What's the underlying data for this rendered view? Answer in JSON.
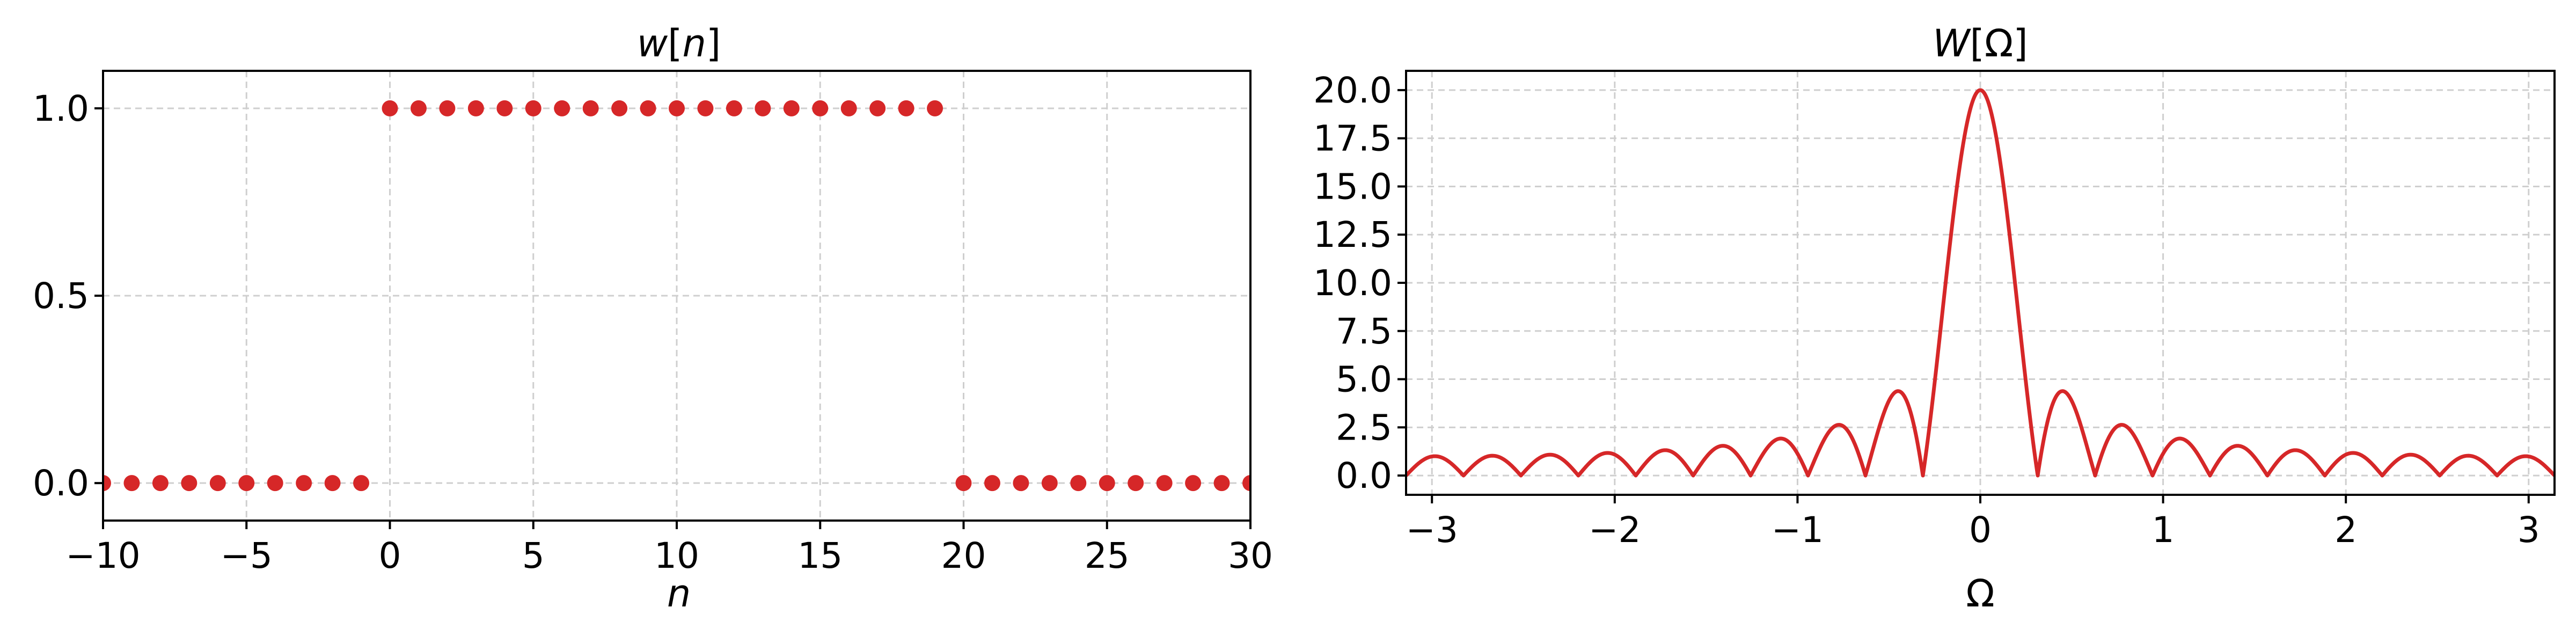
{
  "colors": {
    "series": "#d62728",
    "grid": "#cfcfcf",
    "axis": "#000000"
  },
  "chart_data": [
    {
      "type": "scatter",
      "title": "w[n]",
      "title_parts": {
        "fn": "w",
        "open": "[",
        "var": "n",
        "close": "]"
      },
      "xlabel": "n",
      "ylabel": "",
      "xlim": [
        -10,
        30
      ],
      "ylim": [
        -0.1,
        1.1
      ],
      "xticks": [
        -10,
        -5,
        0,
        5,
        10,
        15,
        20,
        25,
        30
      ],
      "xtick_labels": [
        "−10",
        "−5",
        "0",
        "5",
        "10",
        "15",
        "20",
        "25",
        "30"
      ],
      "yticks": [
        0.0,
        0.5,
        1.0
      ],
      "ytick_labels": [
        "0.0",
        "0.5",
        "1.0"
      ],
      "grid": true,
      "series": [
        {
          "x": [
            -10,
            -9,
            -8,
            -7,
            -6,
            -5,
            -4,
            -3,
            -2,
            -1,
            0,
            1,
            2,
            3,
            4,
            5,
            6,
            7,
            8,
            9,
            10,
            11,
            12,
            13,
            14,
            15,
            16,
            17,
            18,
            19,
            20,
            21,
            22,
            23,
            24,
            25,
            26,
            27,
            28,
            29,
            30
          ],
          "y": [
            0,
            0,
            0,
            0,
            0,
            0,
            0,
            0,
            0,
            0,
            1,
            1,
            1,
            1,
            1,
            1,
            1,
            1,
            1,
            1,
            1,
            1,
            1,
            1,
            1,
            1,
            1,
            1,
            1,
            1,
            0,
            0,
            0,
            0,
            0,
            0,
            0,
            0,
            0,
            0,
            0
          ]
        }
      ]
    },
    {
      "type": "line",
      "title": "W[Ω]",
      "title_parts": {
        "fn": "W",
        "open": "[",
        "var": "Ω",
        "close": "]"
      },
      "xlabel": "Ω",
      "ylabel": "",
      "xlim": [
        -3.1416,
        3.1416
      ],
      "ylim": [
        -1.0,
        21.0
      ],
      "xticks": [
        -3,
        -2,
        -1,
        0,
        1,
        2,
        3
      ],
      "xtick_labels": [
        "−3",
        "−2",
        "−1",
        "0",
        "1",
        "2",
        "3"
      ],
      "yticks": [
        0.0,
        2.5,
        5.0,
        7.5,
        10.0,
        12.5,
        15.0,
        17.5,
        20.0
      ],
      "ytick_labels": [
        "0.0",
        "2.5",
        "5.0",
        "7.5",
        "10.0",
        "12.5",
        "15.0",
        "17.5",
        "20.0"
      ],
      "grid": true,
      "series": [
        {
          "function": "|sin(N·Ω/2) / sin(Ω/2)|",
          "N": 20,
          "samples": 1201
        }
      ]
    }
  ]
}
